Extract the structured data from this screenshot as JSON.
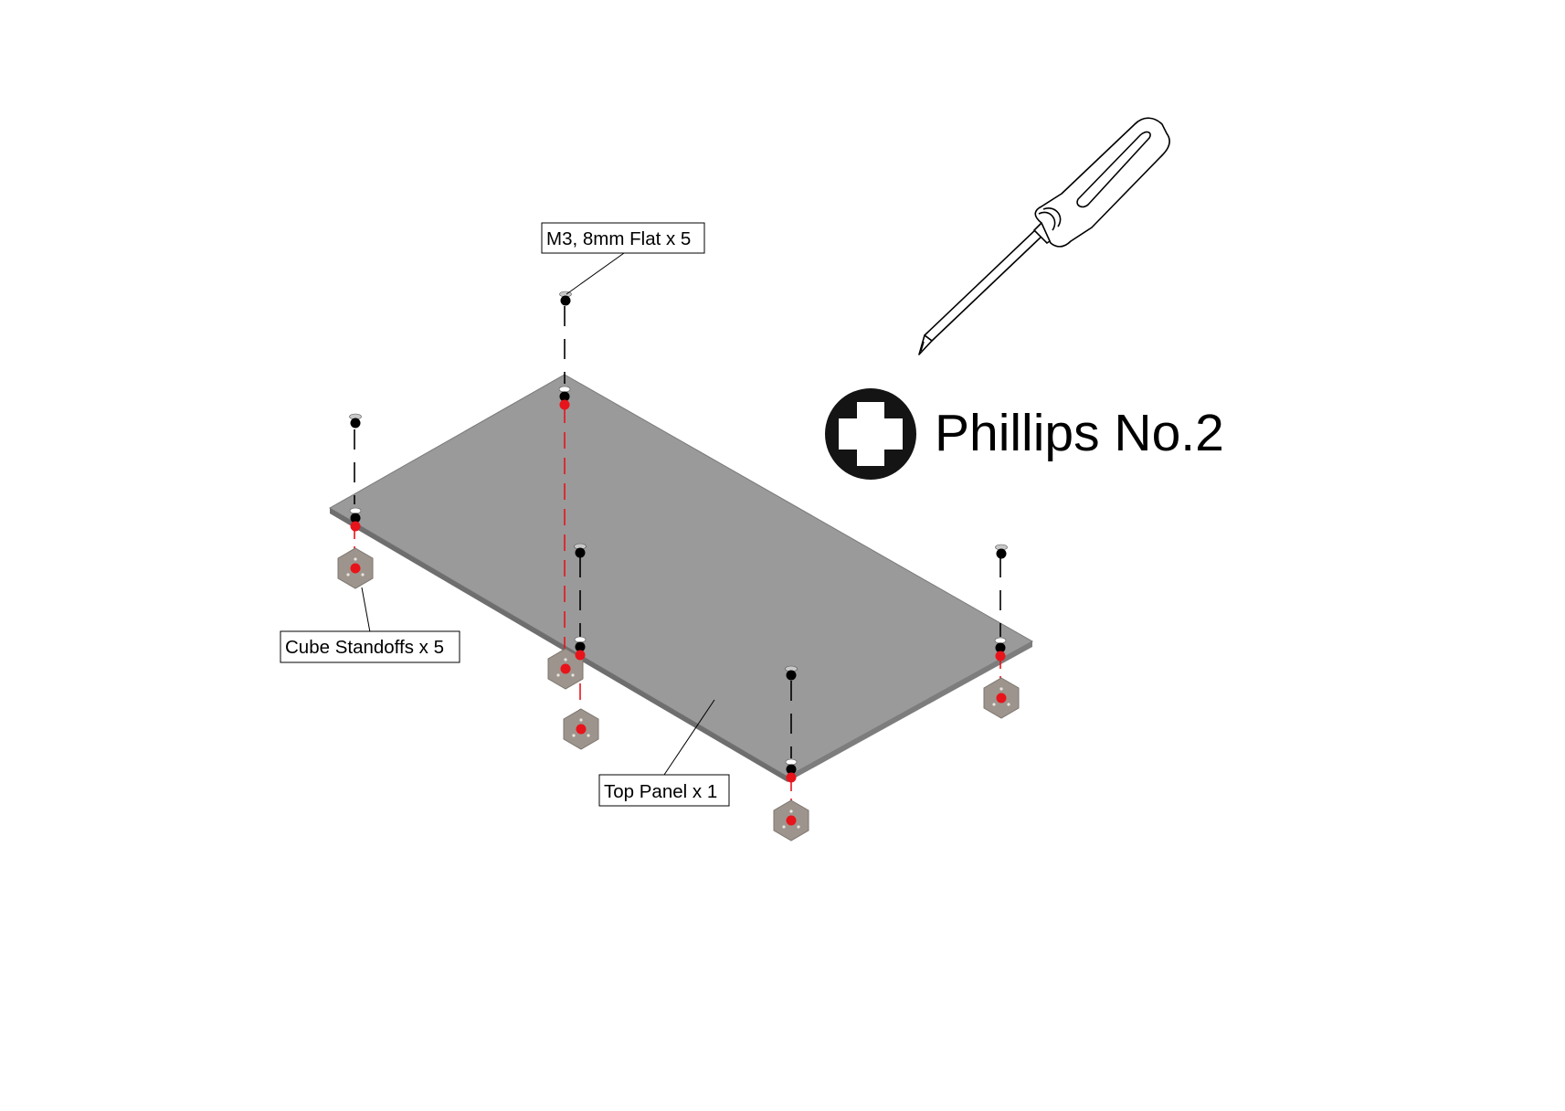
{
  "callouts": {
    "screws": "M3, 8mm Flat x 5",
    "standoffs": "Cube Standoffs x 5",
    "panel": "Top Panel x 1"
  },
  "tool": {
    "label": "Phillips No.2",
    "icon": "phillips-head-icon"
  },
  "colors": {
    "panel": "#9a9a9a",
    "standoff": "#9d958d",
    "hole_marker": "#e8141b",
    "screw": "#000000"
  }
}
